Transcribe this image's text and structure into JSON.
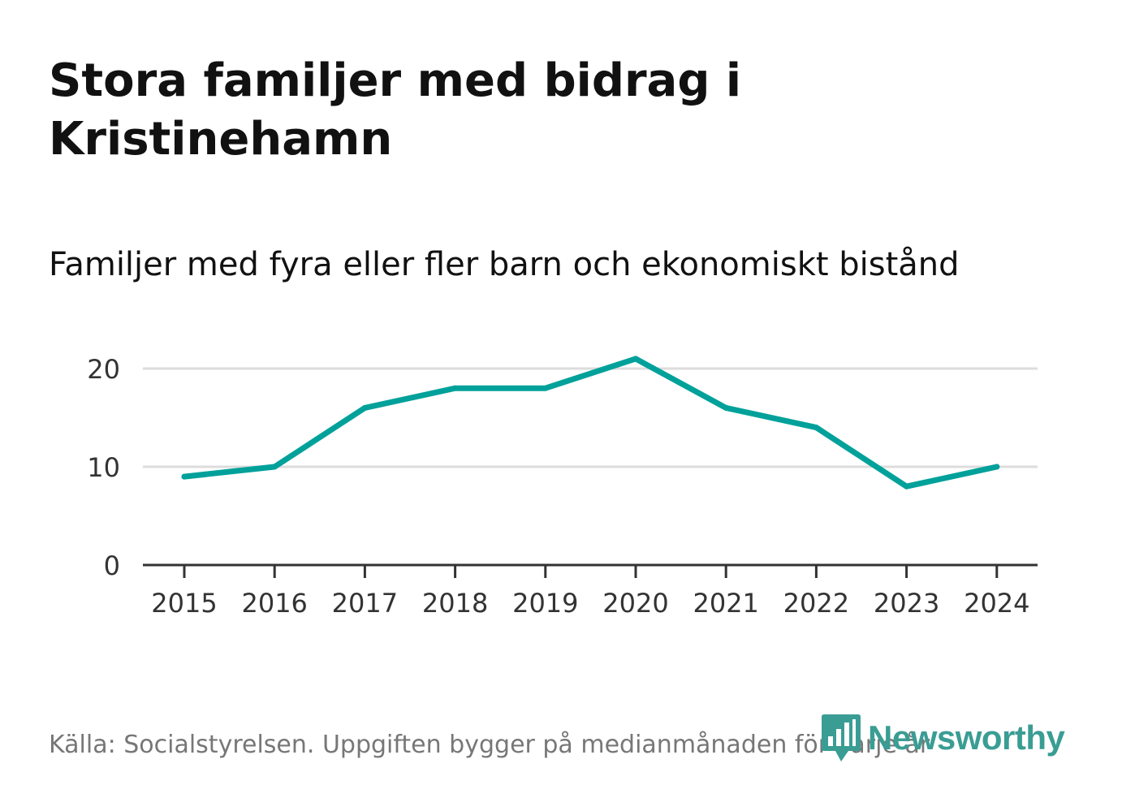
{
  "header": {
    "title": "Stora familjer med bidrag i Kristinehamn",
    "subtitle": "Familjer med fyra eller fler barn och ekonomiskt bistånd"
  },
  "footer": {
    "source": "Källa: Socialstyrelsen. Uppgiften bygger på medianmånaden för varje år"
  },
  "brand": {
    "name": "Newsworthy",
    "color": "#3a9d94"
  },
  "colors": {
    "line": "#00a19a",
    "grid": "#dddddd",
    "axis": "#333333",
    "tick_text": "#333333"
  },
  "chart_data": {
    "type": "line",
    "title": "Familjer med fyra eller fler barn och ekonomiskt bistånd",
    "xlabel": "",
    "ylabel": "",
    "categories": [
      "2015",
      "2016",
      "2017",
      "2018",
      "2019",
      "2020",
      "2021",
      "2022",
      "2023",
      "2024"
    ],
    "series": [
      {
        "name": "Familjer",
        "values": [
          9,
          10,
          16,
          18,
          18,
          21,
          16,
          14,
          8,
          10
        ]
      }
    ],
    "ylim": [
      0,
      20
    ],
    "yticks": [
      "0",
      "10",
      "20"
    ],
    "grid": true,
    "legend": "none"
  }
}
